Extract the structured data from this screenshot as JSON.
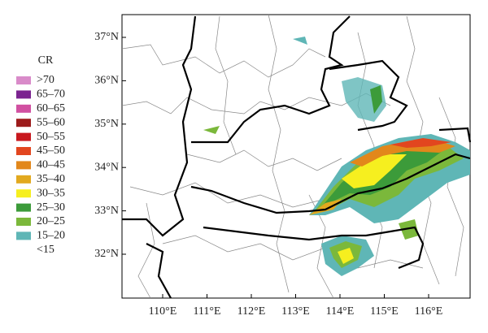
{
  "legend": {
    "title": "CR",
    "items": [
      {
        "label": ">70",
        "color": "#d98bc9"
      },
      {
        "label": "65–70",
        "color": "#7b2390"
      },
      {
        "label": "60–65",
        "color": "#d150a1"
      },
      {
        "label": "55–60",
        "color": "#9c1c1c"
      },
      {
        "label": "50–55",
        "color": "#c8181e"
      },
      {
        "label": "45–50",
        "color": "#e2461f"
      },
      {
        "label": "40–45",
        "color": "#e2871b"
      },
      {
        "label": "35–40",
        "color": "#e2a91f"
      },
      {
        "label": "30–35",
        "color": "#f6ef1f"
      },
      {
        "label": "25–30",
        "color": "#3c9b3a"
      },
      {
        "label": "20–25",
        "color": "#7bb83b"
      },
      {
        "label": "15–20",
        "color": "#5fb6b6"
      },
      {
        "label": "<15"
      }
    ]
  },
  "axes": {
    "latitude": [
      "37°N",
      "36°N",
      "35°N",
      "34°N",
      "33°N",
      "32°N"
    ],
    "longitude": [
      "110°E",
      "111°E",
      "112°E",
      "113°E",
      "114°E",
      "115°E",
      "116°E"
    ]
  }
}
